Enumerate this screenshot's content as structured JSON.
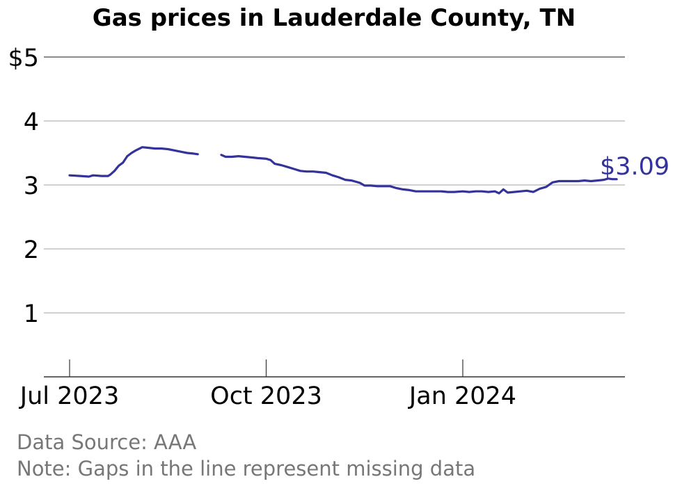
{
  "chart_data": {
    "type": "line",
    "title": "Gas prices in Lauderdale County, TN",
    "xlabel": "",
    "ylabel": "",
    "ylim": [
      0,
      5
    ],
    "y_ticks": [
      {
        "value": 1,
        "label": "1"
      },
      {
        "value": 2,
        "label": "2"
      },
      {
        "value": 3,
        "label": "3"
      },
      {
        "value": 4,
        "label": "4"
      },
      {
        "value": 5,
        "label": "$5"
      }
    ],
    "x_range": [
      "2023-06-28",
      "2024-03-30"
    ],
    "x_ticks": [
      {
        "date": "2023-07-01",
        "label": "Jul 2023"
      },
      {
        "date": "2023-10-01",
        "label": "Oct 2023"
      },
      {
        "date": "2024-01-01",
        "label": "Jan 2024"
      }
    ],
    "grid": true,
    "line_color": "#333399",
    "last_value_label": "$3.09",
    "source": "Data Source: AAA",
    "note": "Note: Gaps in the line represent missing data",
    "series": [
      {
        "segments": [
          [
            [
              "2023-07-01",
              3.15
            ],
            [
              "2023-07-06",
              3.14
            ],
            [
              "2023-07-10",
              3.13
            ],
            [
              "2023-07-12",
              3.15
            ],
            [
              "2023-07-16",
              3.14
            ],
            [
              "2023-07-19",
              3.14
            ],
            [
              "2023-07-20",
              3.16
            ],
            [
              "2023-07-22",
              3.22
            ],
            [
              "2023-07-24",
              3.3
            ],
            [
              "2023-07-26",
              3.35
            ],
            [
              "2023-07-28",
              3.45
            ],
            [
              "2023-07-30",
              3.5
            ],
            [
              "2023-08-01",
              3.54
            ],
            [
              "2023-08-04",
              3.59
            ],
            [
              "2023-08-07",
              3.58
            ],
            [
              "2023-08-10",
              3.57
            ],
            [
              "2023-08-13",
              3.57
            ],
            [
              "2023-08-16",
              3.56
            ],
            [
              "2023-08-19",
              3.54
            ],
            [
              "2023-08-22",
              3.52
            ],
            [
              "2023-08-25",
              3.5
            ],
            [
              "2023-08-28",
              3.49
            ],
            [
              "2023-08-30",
              3.48
            ]
          ],
          [
            [
              "2023-09-10",
              3.47
            ],
            [
              "2023-09-12",
              3.44
            ],
            [
              "2023-09-15",
              3.44
            ],
            [
              "2023-09-18",
              3.45
            ],
            [
              "2023-09-21",
              3.44
            ],
            [
              "2023-09-24",
              3.43
            ],
            [
              "2023-09-27",
              3.42
            ],
            [
              "2023-10-01",
              3.41
            ],
            [
              "2023-10-03",
              3.39
            ],
            [
              "2023-10-05",
              3.33
            ],
            [
              "2023-10-08",
              3.31
            ],
            [
              "2023-10-11",
              3.28
            ],
            [
              "2023-10-14",
              3.25
            ],
            [
              "2023-10-17",
              3.22
            ],
            [
              "2023-10-20",
              3.21
            ],
            [
              "2023-10-23",
              3.21
            ],
            [
              "2023-10-26",
              3.2
            ],
            [
              "2023-10-29",
              3.19
            ],
            [
              "2023-11-01",
              3.15
            ],
            [
              "2023-11-04",
              3.12
            ],
            [
              "2023-11-07",
              3.08
            ],
            [
              "2023-11-10",
              3.07
            ],
            [
              "2023-11-12",
              3.05
            ],
            [
              "2023-11-14",
              3.03
            ],
            [
              "2023-11-16",
              2.99
            ],
            [
              "2023-11-19",
              2.99
            ],
            [
              "2023-11-22",
              2.98
            ],
            [
              "2023-11-25",
              2.98
            ],
            [
              "2023-11-28",
              2.98
            ],
            [
              "2023-12-01",
              2.95
            ],
            [
              "2023-12-04",
              2.93
            ],
            [
              "2023-12-07",
              2.92
            ],
            [
              "2023-12-10",
              2.9
            ],
            [
              "2023-12-13",
              2.9
            ],
            [
              "2023-12-16",
              2.9
            ],
            [
              "2023-12-19",
              2.9
            ],
            [
              "2023-12-22",
              2.9
            ],
            [
              "2023-12-25",
              2.89
            ],
            [
              "2023-12-28",
              2.89
            ],
            [
              "2024-01-01",
              2.9
            ],
            [
              "2024-01-04",
              2.89
            ],
            [
              "2024-01-07",
              2.9
            ],
            [
              "2024-01-10",
              2.9
            ],
            [
              "2024-01-13",
              2.89
            ],
            [
              "2024-01-16",
              2.9
            ],
            [
              "2024-01-18",
              2.87
            ],
            [
              "2024-01-20",
              2.93
            ],
            [
              "2024-01-22",
              2.88
            ],
            [
              "2024-01-25",
              2.89
            ],
            [
              "2024-01-28",
              2.9
            ],
            [
              "2024-01-31",
              2.91
            ],
            [
              "2024-02-03",
              2.89
            ],
            [
              "2024-02-06",
              2.94
            ],
            [
              "2024-02-09",
              2.97
            ],
            [
              "2024-02-12",
              3.04
            ],
            [
              "2024-02-15",
              3.06
            ],
            [
              "2024-02-18",
              3.06
            ],
            [
              "2024-02-21",
              3.06
            ],
            [
              "2024-02-24",
              3.06
            ],
            [
              "2024-02-27",
              3.07
            ],
            [
              "2024-03-01",
              3.06
            ],
            [
              "2024-03-04",
              3.07
            ],
            [
              "2024-03-07",
              3.08
            ],
            [
              "2024-03-09",
              3.1
            ],
            [
              "2024-03-11",
              3.09
            ],
            [
              "2024-03-13",
              3.09
            ]
          ]
        ]
      }
    ]
  }
}
